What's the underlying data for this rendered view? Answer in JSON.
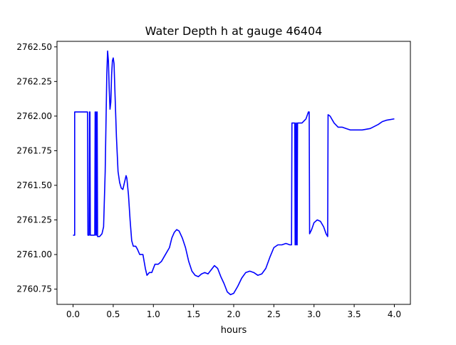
{
  "chart_data": {
    "type": "line",
    "title": "Water Depth h at gauge 46404",
    "xlabel": "hours",
    "ylabel": "",
    "xlim": [
      -0.2,
      4.2
    ],
    "ylim": [
      2760.64,
      2762.54
    ],
    "x_ticks": [
      0.0,
      0.5,
      1.0,
      1.5,
      2.0,
      2.5,
      3.0,
      3.5,
      4.0
    ],
    "x_tick_labels": [
      "0.0",
      "0.5",
      "1.0",
      "1.5",
      "2.0",
      "2.5",
      "3.0",
      "3.5",
      "4.0"
    ],
    "y_ticks": [
      2760.75,
      2761.0,
      2761.25,
      2761.5,
      2761.75,
      2762.0,
      2762.25,
      2762.5
    ],
    "y_tick_labels": [
      "2760.75",
      "2761.00",
      "2761.25",
      "2761.50",
      "2761.75",
      "2762.00",
      "2762.25",
      "2762.50"
    ],
    "grid": false,
    "series": [
      {
        "color": "#0000ff",
        "points": [
          [
            0.0,
            2761.14
          ],
          [
            0.02,
            2761.14
          ],
          [
            0.02,
            2762.03
          ],
          [
            0.18,
            2762.03
          ],
          [
            0.185,
            2761.14
          ],
          [
            0.2,
            2761.14
          ],
          [
            0.205,
            2762.03
          ],
          [
            0.21,
            2762.03
          ],
          [
            0.215,
            2761.14
          ],
          [
            0.27,
            2761.14
          ],
          [
            0.275,
            2762.03
          ],
          [
            0.28,
            2762.03
          ],
          [
            0.285,
            2761.14
          ],
          [
            0.29,
            2761.14
          ],
          [
            0.295,
            2762.03
          ],
          [
            0.3,
            2762.03
          ],
          [
            0.305,
            2761.13
          ],
          [
            0.33,
            2761.13
          ],
          [
            0.36,
            2761.15
          ],
          [
            0.38,
            2761.2
          ],
          [
            0.4,
            2761.6
          ],
          [
            0.41,
            2761.95
          ],
          [
            0.42,
            2762.3
          ],
          [
            0.43,
            2762.47
          ],
          [
            0.44,
            2762.4
          ],
          [
            0.45,
            2762.2
          ],
          [
            0.46,
            2762.05
          ],
          [
            0.47,
            2762.1
          ],
          [
            0.48,
            2762.3
          ],
          [
            0.49,
            2762.4
          ],
          [
            0.5,
            2762.42
          ],
          [
            0.51,
            2762.38
          ],
          [
            0.52,
            2762.2
          ],
          [
            0.54,
            2761.85
          ],
          [
            0.56,
            2761.6
          ],
          [
            0.58,
            2761.52
          ],
          [
            0.6,
            2761.48
          ],
          [
            0.62,
            2761.47
          ],
          [
            0.64,
            2761.52
          ],
          [
            0.66,
            2761.57
          ],
          [
            0.67,
            2761.55
          ],
          [
            0.69,
            2761.43
          ],
          [
            0.71,
            2761.25
          ],
          [
            0.73,
            2761.1
          ],
          [
            0.75,
            2761.06
          ],
          [
            0.78,
            2761.06
          ],
          [
            0.8,
            2761.04
          ],
          [
            0.83,
            2761.0
          ],
          [
            0.87,
            2761.0
          ],
          [
            0.9,
            2760.9
          ],
          [
            0.92,
            2760.85
          ],
          [
            0.95,
            2760.87
          ],
          [
            0.98,
            2760.87
          ],
          [
            1.02,
            2760.93
          ],
          [
            1.06,
            2760.93
          ],
          [
            1.1,
            2760.95
          ],
          [
            1.15,
            2761.0
          ],
          [
            1.2,
            2761.05
          ],
          [
            1.23,
            2761.12
          ],
          [
            1.26,
            2761.16
          ],
          [
            1.29,
            2761.18
          ],
          [
            1.32,
            2761.17
          ],
          [
            1.36,
            2761.12
          ],
          [
            1.4,
            2761.05
          ],
          [
            1.44,
            2760.95
          ],
          [
            1.48,
            2760.88
          ],
          [
            1.52,
            2760.85
          ],
          [
            1.56,
            2760.84
          ],
          [
            1.6,
            2760.86
          ],
          [
            1.64,
            2760.87
          ],
          [
            1.68,
            2760.86
          ],
          [
            1.72,
            2760.89
          ],
          [
            1.76,
            2760.92
          ],
          [
            1.8,
            2760.9
          ],
          [
            1.84,
            2760.84
          ],
          [
            1.88,
            2760.79
          ],
          [
            1.92,
            2760.73
          ],
          [
            1.96,
            2760.71
          ],
          [
            2.0,
            2760.72
          ],
          [
            2.05,
            2760.77
          ],
          [
            2.1,
            2760.83
          ],
          [
            2.15,
            2760.87
          ],
          [
            2.2,
            2760.88
          ],
          [
            2.25,
            2760.87
          ],
          [
            2.3,
            2760.85
          ],
          [
            2.35,
            2760.86
          ],
          [
            2.4,
            2760.9
          ],
          [
            2.45,
            2760.98
          ],
          [
            2.5,
            2761.05
          ],
          [
            2.55,
            2761.07
          ],
          [
            2.6,
            2761.07
          ],
          [
            2.65,
            2761.08
          ],
          [
            2.7,
            2761.07
          ],
          [
            2.72,
            2761.07
          ],
          [
            2.725,
            2761.95
          ],
          [
            2.76,
            2761.95
          ],
          [
            2.765,
            2761.07
          ],
          [
            2.77,
            2761.07
          ],
          [
            2.775,
            2761.95
          ],
          [
            2.78,
            2761.95
          ],
          [
            2.785,
            2761.07
          ],
          [
            2.79,
            2761.07
          ],
          [
            2.795,
            2761.95
          ],
          [
            2.85,
            2761.95
          ],
          [
            2.9,
            2761.98
          ],
          [
            2.93,
            2762.03
          ],
          [
            2.94,
            2762.03
          ],
          [
            2.945,
            2761.15
          ],
          [
            2.97,
            2761.18
          ],
          [
            3.0,
            2761.23
          ],
          [
            3.04,
            2761.25
          ],
          [
            3.08,
            2761.24
          ],
          [
            3.12,
            2761.2
          ],
          [
            3.15,
            2761.15
          ],
          [
            3.17,
            2761.13
          ],
          [
            3.175,
            2762.01
          ],
          [
            3.2,
            2762.0
          ],
          [
            3.25,
            2761.95
          ],
          [
            3.3,
            2761.92
          ],
          [
            3.35,
            2761.92
          ],
          [
            3.4,
            2761.91
          ],
          [
            3.45,
            2761.9
          ],
          [
            3.5,
            2761.9
          ],
          [
            3.6,
            2761.9
          ],
          [
            3.7,
            2761.91
          ],
          [
            3.8,
            2761.94
          ],
          [
            3.85,
            2761.96
          ],
          [
            3.9,
            2761.97
          ],
          [
            4.0,
            2761.98
          ]
        ]
      }
    ]
  }
}
